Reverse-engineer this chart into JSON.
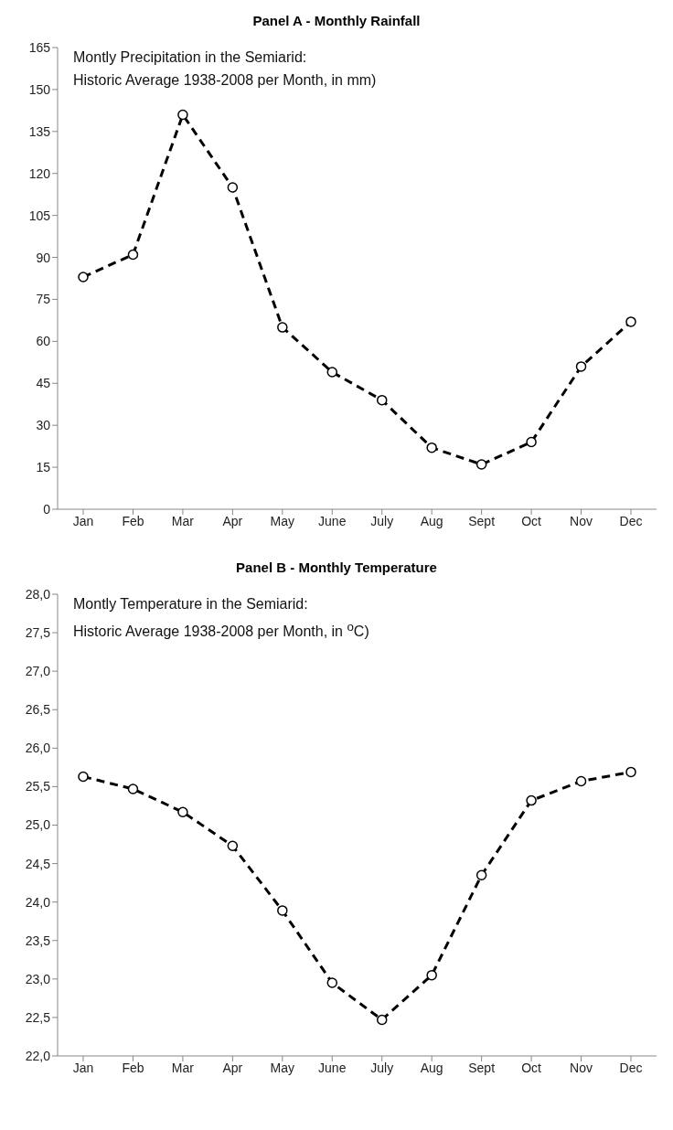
{
  "chart_data": [
    {
      "type": "line",
      "title": "Panel A - Monthly Rainfall",
      "annotations": [
        "Montly Precipitation in the Semiarid:",
        "Historic Average 1938-2008  per Month, in mm)"
      ],
      "categories": [
        "Jan",
        "Feb",
        "Mar",
        "Apr",
        "May",
        "June",
        "July",
        "Aug",
        "Sept",
        "Oct",
        "Nov",
        "Dec"
      ],
      "series": [
        {
          "color": "#000000",
          "values": [
            83,
            91,
            141,
            115,
            65,
            49,
            39,
            22,
            16,
            24,
            51,
            67
          ]
        }
      ],
      "ylim": [
        0,
        165
      ],
      "yticks": [
        0,
        15,
        30,
        45,
        60,
        75,
        90,
        105,
        120,
        135,
        150,
        165
      ],
      "grid": false,
      "legend": false,
      "marker": "circle",
      "line_style": "dashed"
    },
    {
      "type": "line",
      "title": "Panel B - Monthly Temperature",
      "annotations": [
        "Montly Temperature in the Semiarid:",
        "Historic Average 1938-2008  per Month, in $^{o}$C)"
      ],
      "categories": [
        "Jan",
        "Feb",
        "Mar",
        "Apr",
        "May",
        "June",
        "July",
        "Aug",
        "Sept",
        "Oct",
        "Nov",
        "Dec"
      ],
      "series": [
        {
          "color": "#000000",
          "values": [
            25.63,
            25.47,
            25.17,
            24.73,
            23.89,
            22.95,
            22.47,
            23.05,
            24.35,
            25.32,
            25.57,
            25.69
          ]
        }
      ],
      "ylim": [
        22,
        28
      ],
      "yticks": [
        {
          "value": 22,
          "label": "22,0"
        },
        {
          "value": 22.5,
          "label": "22,5"
        },
        {
          "value": 23,
          "label": "23,0"
        },
        {
          "value": 23.5,
          "label": "23,5"
        },
        {
          "value": 24,
          "label": "24,0"
        },
        {
          "value": 24.5,
          "label": "24,5"
        },
        {
          "value": 25,
          "label": "25,0"
        },
        {
          "value": 25.5,
          "label": "25,5"
        },
        {
          "value": 26,
          "label": "26,0"
        },
        {
          "value": 26.5,
          "label": "26,5"
        },
        {
          "value": 27,
          "label": "27,0"
        },
        {
          "value": 27.5,
          "label": "27,5"
        },
        {
          "value": 28,
          "label": "28,0"
        }
      ],
      "grid": false,
      "legend": false,
      "marker": "circle",
      "line_style": "dashed"
    }
  ]
}
